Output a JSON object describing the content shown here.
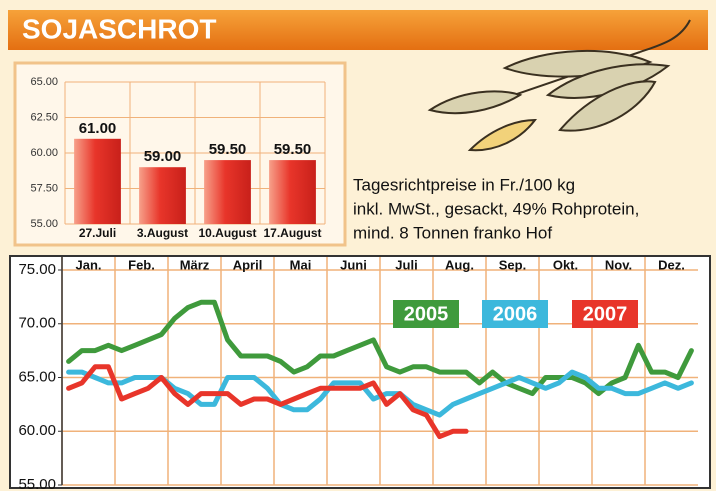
{
  "title": "SOJASCHROT",
  "chart_data": [
    {
      "type": "bar",
      "categories": [
        "27.Juli",
        "3.August",
        "10.August",
        "17.August"
      ],
      "values": [
        61,
        59,
        59.5,
        59.5
      ],
      "value_labels": [
        "61.00",
        "59.00",
        "59.50",
        "59.50"
      ],
      "color": "#e8352a",
      "ylim": [
        55,
        65
      ],
      "yticks": [
        {
          "value": 55,
          "label": "55.00"
        },
        {
          "value": 57.5,
          "label": "57.50"
        },
        {
          "value": 60,
          "label": "60.00"
        },
        {
          "value": 62.5,
          "label": "62.50"
        },
        {
          "value": 65,
          "label": "65.00"
        }
      ],
      "grid": true,
      "annotations": [
        "Tagesrichtpreise in Fr./100 kg",
        "inkl. MwSt., gesackt, 49% Rohprotein,",
        "mind. 8 Tonnen franko Hof"
      ]
    },
    {
      "type": "line",
      "categories": [
        "Jan.",
        null,
        null,
        null,
        "Feb.",
        null,
        null,
        null,
        "März",
        null,
        null,
        null,
        "April",
        null,
        null,
        null,
        "Mai",
        null,
        null,
        null,
        "Juni",
        null,
        null,
        null,
        "Juli",
        null,
        null,
        null,
        "Aug.",
        null,
        null,
        null,
        "Sep.",
        null,
        null,
        null,
        "Okt.",
        null,
        null,
        null,
        "Nov.",
        null,
        null,
        null,
        "Dez.",
        null,
        null,
        null
      ],
      "series": [
        {
          "name": "2005",
          "color": "#3f9a3c",
          "values": [
            66.5,
            67.5,
            67.5,
            68,
            67.5,
            68,
            68.5,
            69,
            70.5,
            71.5,
            72,
            72,
            68.5,
            67,
            67,
            67,
            66.5,
            65.5,
            66,
            67,
            67,
            67.5,
            68,
            68.5,
            66,
            65.5,
            66,
            66,
            65.5,
            65.5,
            65.5,
            64.5,
            65.5,
            64.5,
            64,
            63.5,
            65,
            65,
            65,
            64.5,
            63.5,
            64.5,
            65,
            68,
            65.5,
            65.5,
            65,
            67.5
          ]
        },
        {
          "name": "2006",
          "color": "#3cb8dc",
          "values": [
            65.5,
            65.5,
            65,
            64.5,
            64.5,
            65,
            65,
            65,
            64,
            63.5,
            62.5,
            62.5,
            65,
            65,
            65,
            64,
            62.5,
            62,
            62,
            63,
            64.5,
            64.5,
            64.5,
            63,
            63.5,
            63.5,
            62.5,
            62,
            61.5,
            62.5,
            63,
            63.5,
            64,
            64.5,
            65,
            64.5,
            64,
            64.5,
            65.5,
            65,
            64,
            64,
            63.5,
            63.5,
            64,
            64.5,
            64,
            64.5
          ]
        },
        {
          "name": "2007",
          "color": "#e8352a",
          "values": [
            64,
            64.5,
            66,
            66,
            63,
            63.5,
            64,
            65,
            63.5,
            62.5,
            63.5,
            63.5,
            63.5,
            62.5,
            63,
            63,
            62.5,
            63,
            63.5,
            64,
            64,
            64,
            64,
            64.5,
            62.5,
            63.5,
            62,
            61.5,
            59.5,
            60,
            60,
            null,
            null,
            null,
            null,
            null,
            null,
            null,
            null,
            null,
            null,
            null,
            null,
            null,
            null,
            null,
            null,
            null
          ]
        }
      ],
      "ylim": [
        55,
        75
      ],
      "yticks": [
        {
          "value": 55,
          "label": "55.00"
        },
        {
          "value": 60,
          "label": "60.00"
        },
        {
          "value": 65,
          "label": "65.00"
        },
        {
          "value": 70,
          "label": "70.00"
        },
        {
          "value": 75,
          "label": "75.00"
        }
      ],
      "grid": true
    }
  ]
}
